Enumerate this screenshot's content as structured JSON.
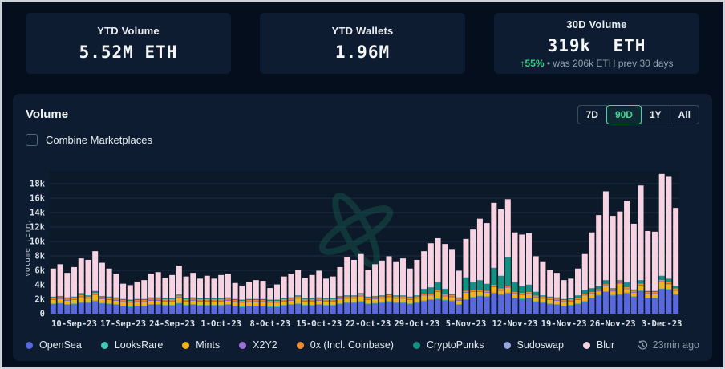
{
  "stats": [
    {
      "label": "YTD Volume",
      "value": "5.52M ETH"
    },
    {
      "label": "YTD Wallets",
      "value": "1.96M"
    },
    {
      "label": "30D Volume",
      "value": "319k  ETH",
      "change_arrow": "↑",
      "change_pct": "55%",
      "change_note": " • was 206k ETH prev 30 days"
    }
  ],
  "panel": {
    "title": "Volume",
    "ranges": [
      {
        "label": "7D"
      },
      {
        "label": "90D"
      },
      {
        "label": "1Y"
      },
      {
        "label": "All"
      }
    ],
    "active_range": "90D",
    "combine_label": "Combine Marketplaces",
    "updated": "23min ago"
  },
  "colors": {
    "page_bg": "#050e1c",
    "card_bg": "#0d1c30",
    "grid": "#1d2d44",
    "axis_text": "#dbe2ea",
    "green_accent": "#3fd795",
    "watermark": "#14534a"
  },
  "chart_data": {
    "type": "bar",
    "stacked": true,
    "title": "Volume",
    "ylabel": "Volume (ETH)",
    "values_unit": "thousand ETH per day (estimated from chart)",
    "ylim_k": [
      0,
      20
    ],
    "y_ticks": [
      "0",
      "2k",
      "4k",
      "6k",
      "8k",
      "10k",
      "12k",
      "14k",
      "16k",
      "18k"
    ],
    "x_tick_labels": [
      "10-Sep-23",
      "17-Sep-23",
      "24-Sep-23",
      "1-Oct-23",
      "8-Oct-23",
      "15-Oct-23",
      "22-Oct-23",
      "29-Oct-23",
      "5-Nov-23",
      "12-Nov-23",
      "19-Nov-23",
      "26-Nov-23",
      "3-Dec-23"
    ],
    "first_tick_bar_index": 3,
    "tick_every": 7,
    "legend_position": "bottom",
    "grid": true,
    "series": [
      {
        "name": "OpenSea",
        "color": "#5968dd",
        "values": [
          1.3,
          1.4,
          1.2,
          1.3,
          1.5,
          1.5,
          1.7,
          1.4,
          1.3,
          1.2,
          1.0,
          0.9,
          1.0,
          1.0,
          1.2,
          1.2,
          1.1,
          1.1,
          1.4,
          1.1,
          1.2,
          1.1,
          1.1,
          1.1,
          1.1,
          1.2,
          1.0,
          0.9,
          1.0,
          1.0,
          1.0,
          0.9,
          0.9,
          1.1,
          1.2,
          1.3,
          1.1,
          1.1,
          1.2,
          1.1,
          1.1,
          1.3,
          1.5,
          1.5,
          1.6,
          1.3,
          1.4,
          1.5,
          1.6,
          1.5,
          1.5,
          1.3,
          1.5,
          1.7,
          1.9,
          2.0,
          1.8,
          1.7,
          1.2,
          1.9,
          2.2,
          2.4,
          2.3,
          2.8,
          2.6,
          2.8,
          2.1,
          2.0,
          2.1,
          1.6,
          1.5,
          1.3,
          1.2,
          1.0,
          1.1,
          1.3,
          1.6,
          2.1,
          2.5,
          3.0,
          2.5,
          2.6,
          2.8,
          2.3,
          3.1,
          2.1,
          2.1,
          3.4,
          3.3,
          2.6
        ]
      },
      {
        "name": "LooksRare",
        "color": "#3fc8b4",
        "values": [
          0.1,
          0.1,
          0.1,
          0.1,
          0.1,
          0.1,
          0.1,
          0.1,
          0.1,
          0.1,
          0.1,
          0.1,
          0.1,
          0.1,
          0.1,
          0.1,
          0.1,
          0.1,
          0.1,
          0.1,
          0.1,
          0.1,
          0.1,
          0.1,
          0.1,
          0.1,
          0.1,
          0.1,
          0.1,
          0.1,
          0.1,
          0.1,
          0.1,
          0.1,
          0.1,
          0.1,
          0.1,
          0.1,
          0.1,
          0.1,
          0.1,
          0.1,
          0.1,
          0.1,
          0.1,
          0.1,
          0.1,
          0.1,
          0.1,
          0.1,
          0.1,
          0.1,
          0.1,
          0.1,
          0.1,
          0.1,
          0.1,
          0.1,
          0.1,
          0.1,
          0.1,
          0.1,
          0.1,
          0.1,
          0.1,
          0.1,
          0.1,
          0.1,
          0.1,
          0.1,
          0.1,
          0.1,
          0.1,
          0.1,
          0.1,
          0.1,
          0.1,
          0.1,
          0.1,
          0.1,
          0.1,
          0.1,
          0.1,
          0.1,
          0.1,
          0.1,
          0.1,
          0.1,
          0.1,
          0.1
        ]
      },
      {
        "name": "Mints",
        "color": "#efb31c",
        "values": [
          0.5,
          0.5,
          0.5,
          0.5,
          0.7,
          0.5,
          0.8,
          0.5,
          0.5,
          0.5,
          0.5,
          0.5,
          0.5,
          0.5,
          0.5,
          0.5,
          0.5,
          0.5,
          0.7,
          0.5,
          0.5,
          0.5,
          0.5,
          0.5,
          0.5,
          0.5,
          0.5,
          0.5,
          0.5,
          0.5,
          0.5,
          0.5,
          0.5,
          0.5,
          0.5,
          0.7,
          0.5,
          0.5,
          0.5,
          0.5,
          0.5,
          0.6,
          0.5,
          0.5,
          0.7,
          0.5,
          0.5,
          0.5,
          0.6,
          0.5,
          0.5,
          0.5,
          0.5,
          0.7,
          0.5,
          0.9,
          0.5,
          0.5,
          0.5,
          0.9,
          0.7,
          0.5,
          0.5,
          0.8,
          0.5,
          0.7,
          0.5,
          0.5,
          0.5,
          0.5,
          0.5,
          0.5,
          0.5,
          0.5,
          0.5,
          0.5,
          0.8,
          0.5,
          0.5,
          0.7,
          0.5,
          1.5,
          0.5,
          0.5,
          0.7,
          0.5,
          0.5,
          0.9,
          0.7,
          0.5
        ]
      },
      {
        "name": "X2Y2",
        "color": "#9c6fd2",
        "values": [
          0.1,
          0.1,
          0.1,
          0.1,
          0.1,
          0.1,
          0.1,
          0.1,
          0.1,
          0.1,
          0.1,
          0.1,
          0.1,
          0.1,
          0.1,
          0.1,
          0.1,
          0.1,
          0.1,
          0.1,
          0.1,
          0.1,
          0.1,
          0.1,
          0.1,
          0.1,
          0.1,
          0.1,
          0.1,
          0.1,
          0.1,
          0.1,
          0.1,
          0.1,
          0.1,
          0.1,
          0.1,
          0.1,
          0.1,
          0.1,
          0.1,
          0.1,
          0.1,
          0.1,
          0.1,
          0.1,
          0.1,
          0.1,
          0.1,
          0.1,
          0.1,
          0.1,
          0.1,
          0.1,
          0.1,
          0.1,
          0.1,
          0.1,
          0.1,
          0.1,
          0.1,
          0.1,
          0.1,
          0.1,
          0.1,
          0.1,
          0.1,
          0.1,
          0.1,
          0.1,
          0.1,
          0.1,
          0.1,
          0.1,
          0.1,
          0.1,
          0.1,
          0.1,
          0.1,
          0.1,
          0.1,
          0.1,
          0.1,
          0.1,
          0.1,
          0.1,
          0.1,
          0.1,
          0.1,
          0.1
        ]
      },
      {
        "name": "0x (Incl. Coinbase)",
        "color": "#ee8c34",
        "values": [
          0.2,
          0.2,
          0.2,
          0.2,
          0.2,
          0.2,
          0.2,
          0.2,
          0.2,
          0.2,
          0.2,
          0.2,
          0.2,
          0.2,
          0.2,
          0.2,
          0.2,
          0.2,
          0.2,
          0.2,
          0.2,
          0.2,
          0.2,
          0.2,
          0.2,
          0.2,
          0.2,
          0.2,
          0.2,
          0.2,
          0.2,
          0.2,
          0.2,
          0.2,
          0.2,
          0.2,
          0.2,
          0.2,
          0.2,
          0.2,
          0.2,
          0.2,
          0.2,
          0.2,
          0.2,
          0.2,
          0.2,
          0.2,
          0.2,
          0.2,
          0.2,
          0.2,
          0.2,
          0.2,
          0.2,
          0.2,
          0.2,
          0.2,
          0.2,
          0.2,
          0.2,
          0.2,
          0.2,
          0.2,
          0.2,
          0.2,
          0.2,
          0.2,
          0.2,
          0.2,
          0.2,
          0.2,
          0.2,
          0.2,
          0.2,
          0.2,
          0.2,
          0.2,
          0.2,
          0.2,
          0.2,
          0.2,
          0.2,
          0.2,
          0.2,
          0.2,
          0.2,
          0.2,
          0.2,
          0.2
        ]
      },
      {
        "name": "CryptoPunks",
        "color": "#13907f",
        "values": [
          0.1,
          0.1,
          0.1,
          0.1,
          0.2,
          0.1,
          0.2,
          0.1,
          0.1,
          0.1,
          0.1,
          0.1,
          0.1,
          0.1,
          0.1,
          0.1,
          0.1,
          0.1,
          0.1,
          0.1,
          0.1,
          0.1,
          0.1,
          0.1,
          0.1,
          0.1,
          0.1,
          0.1,
          0.1,
          0.1,
          0.1,
          0.1,
          0.1,
          0.1,
          0.1,
          0.1,
          0.1,
          0.1,
          0.1,
          0.1,
          0.1,
          0.1,
          0.1,
          0.1,
          0.1,
          0.1,
          0.1,
          0.1,
          0.1,
          0.1,
          0.1,
          0.1,
          0.1,
          0.6,
          0.8,
          1.0,
          0.7,
          0.1,
          0.1,
          1.8,
          1.0,
          1.3,
          0.9,
          2.3,
          1.7,
          3.9,
          1.3,
          0.9,
          1.0,
          0.5,
          0.1,
          0.1,
          0.1,
          0.1,
          0.1,
          0.3,
          0.4,
          0.5,
          0.4,
          0.5,
          0.1,
          0.1,
          0.6,
          0.1,
          0.4,
          0.1,
          0.1,
          0.5,
          0.4,
          0.3
        ]
      },
      {
        "name": "Sudoswap",
        "color": "#97a5de",
        "values": [
          0.05,
          0.05,
          0.05,
          0.05,
          0.05,
          0.05,
          0.05,
          0.05,
          0.05,
          0.05,
          0.05,
          0.05,
          0.05,
          0.05,
          0.05,
          0.05,
          0.05,
          0.05,
          0.05,
          0.05,
          0.05,
          0.05,
          0.05,
          0.05,
          0.05,
          0.05,
          0.05,
          0.05,
          0.05,
          0.05,
          0.05,
          0.05,
          0.05,
          0.05,
          0.05,
          0.05,
          0.05,
          0.05,
          0.05,
          0.05,
          0.05,
          0.05,
          0.05,
          0.05,
          0.05,
          0.05,
          0.05,
          0.05,
          0.05,
          0.05,
          0.05,
          0.05,
          0.05,
          0.05,
          0.05,
          0.05,
          0.05,
          0.05,
          0.05,
          0.05,
          0.05,
          0.05,
          0.05,
          0.05,
          0.05,
          0.05,
          0.05,
          0.05,
          0.05,
          0.05,
          0.05,
          0.05,
          0.05,
          0.05,
          0.05,
          0.05,
          0.05,
          0.05,
          0.05,
          0.05,
          0.05,
          0.05,
          0.05,
          0.05,
          0.05,
          0.05,
          0.05,
          0.05,
          0.05,
          0.05
        ]
      },
      {
        "name": "Blur",
        "color": "#f7d2e1",
        "values": [
          3.9,
          4.4,
          3.4,
          4.1,
          4.8,
          4.9,
          5.5,
          4.6,
          3.9,
          3.3,
          2.1,
          2.0,
          2.4,
          2.6,
          3.3,
          3.5,
          2.8,
          3.2,
          4.0,
          3.0,
          3.4,
          2.7,
          3.1,
          2.7,
          3.2,
          3.3,
          2.2,
          1.9,
          2.3,
          2.6,
          2.5,
          1.6,
          2.1,
          3.0,
          3.3,
          3.5,
          2.8,
          3.2,
          3.7,
          2.7,
          3.0,
          4.0,
          5.3,
          4.9,
          5.4,
          3.7,
          4.4,
          4.8,
          5.2,
          4.7,
          5.1,
          3.9,
          4.9,
          5.2,
          6.1,
          6.1,
          6.2,
          6.1,
          3.7,
          5.3,
          7.3,
          8.5,
          8.4,
          9.0,
          9.2,
          8.0,
          6.9,
          7.1,
          7.1,
          4.9,
          4.7,
          3.7,
          3.4,
          2.6,
          2.7,
          3.7,
          5.0,
          7.7,
          9.8,
          12.3,
          10.0,
          9.5,
          11.3,
          9.1,
          13.1,
          8.3,
          8.2,
          14.1,
          14.1,
          10.8
        ]
      }
    ]
  }
}
